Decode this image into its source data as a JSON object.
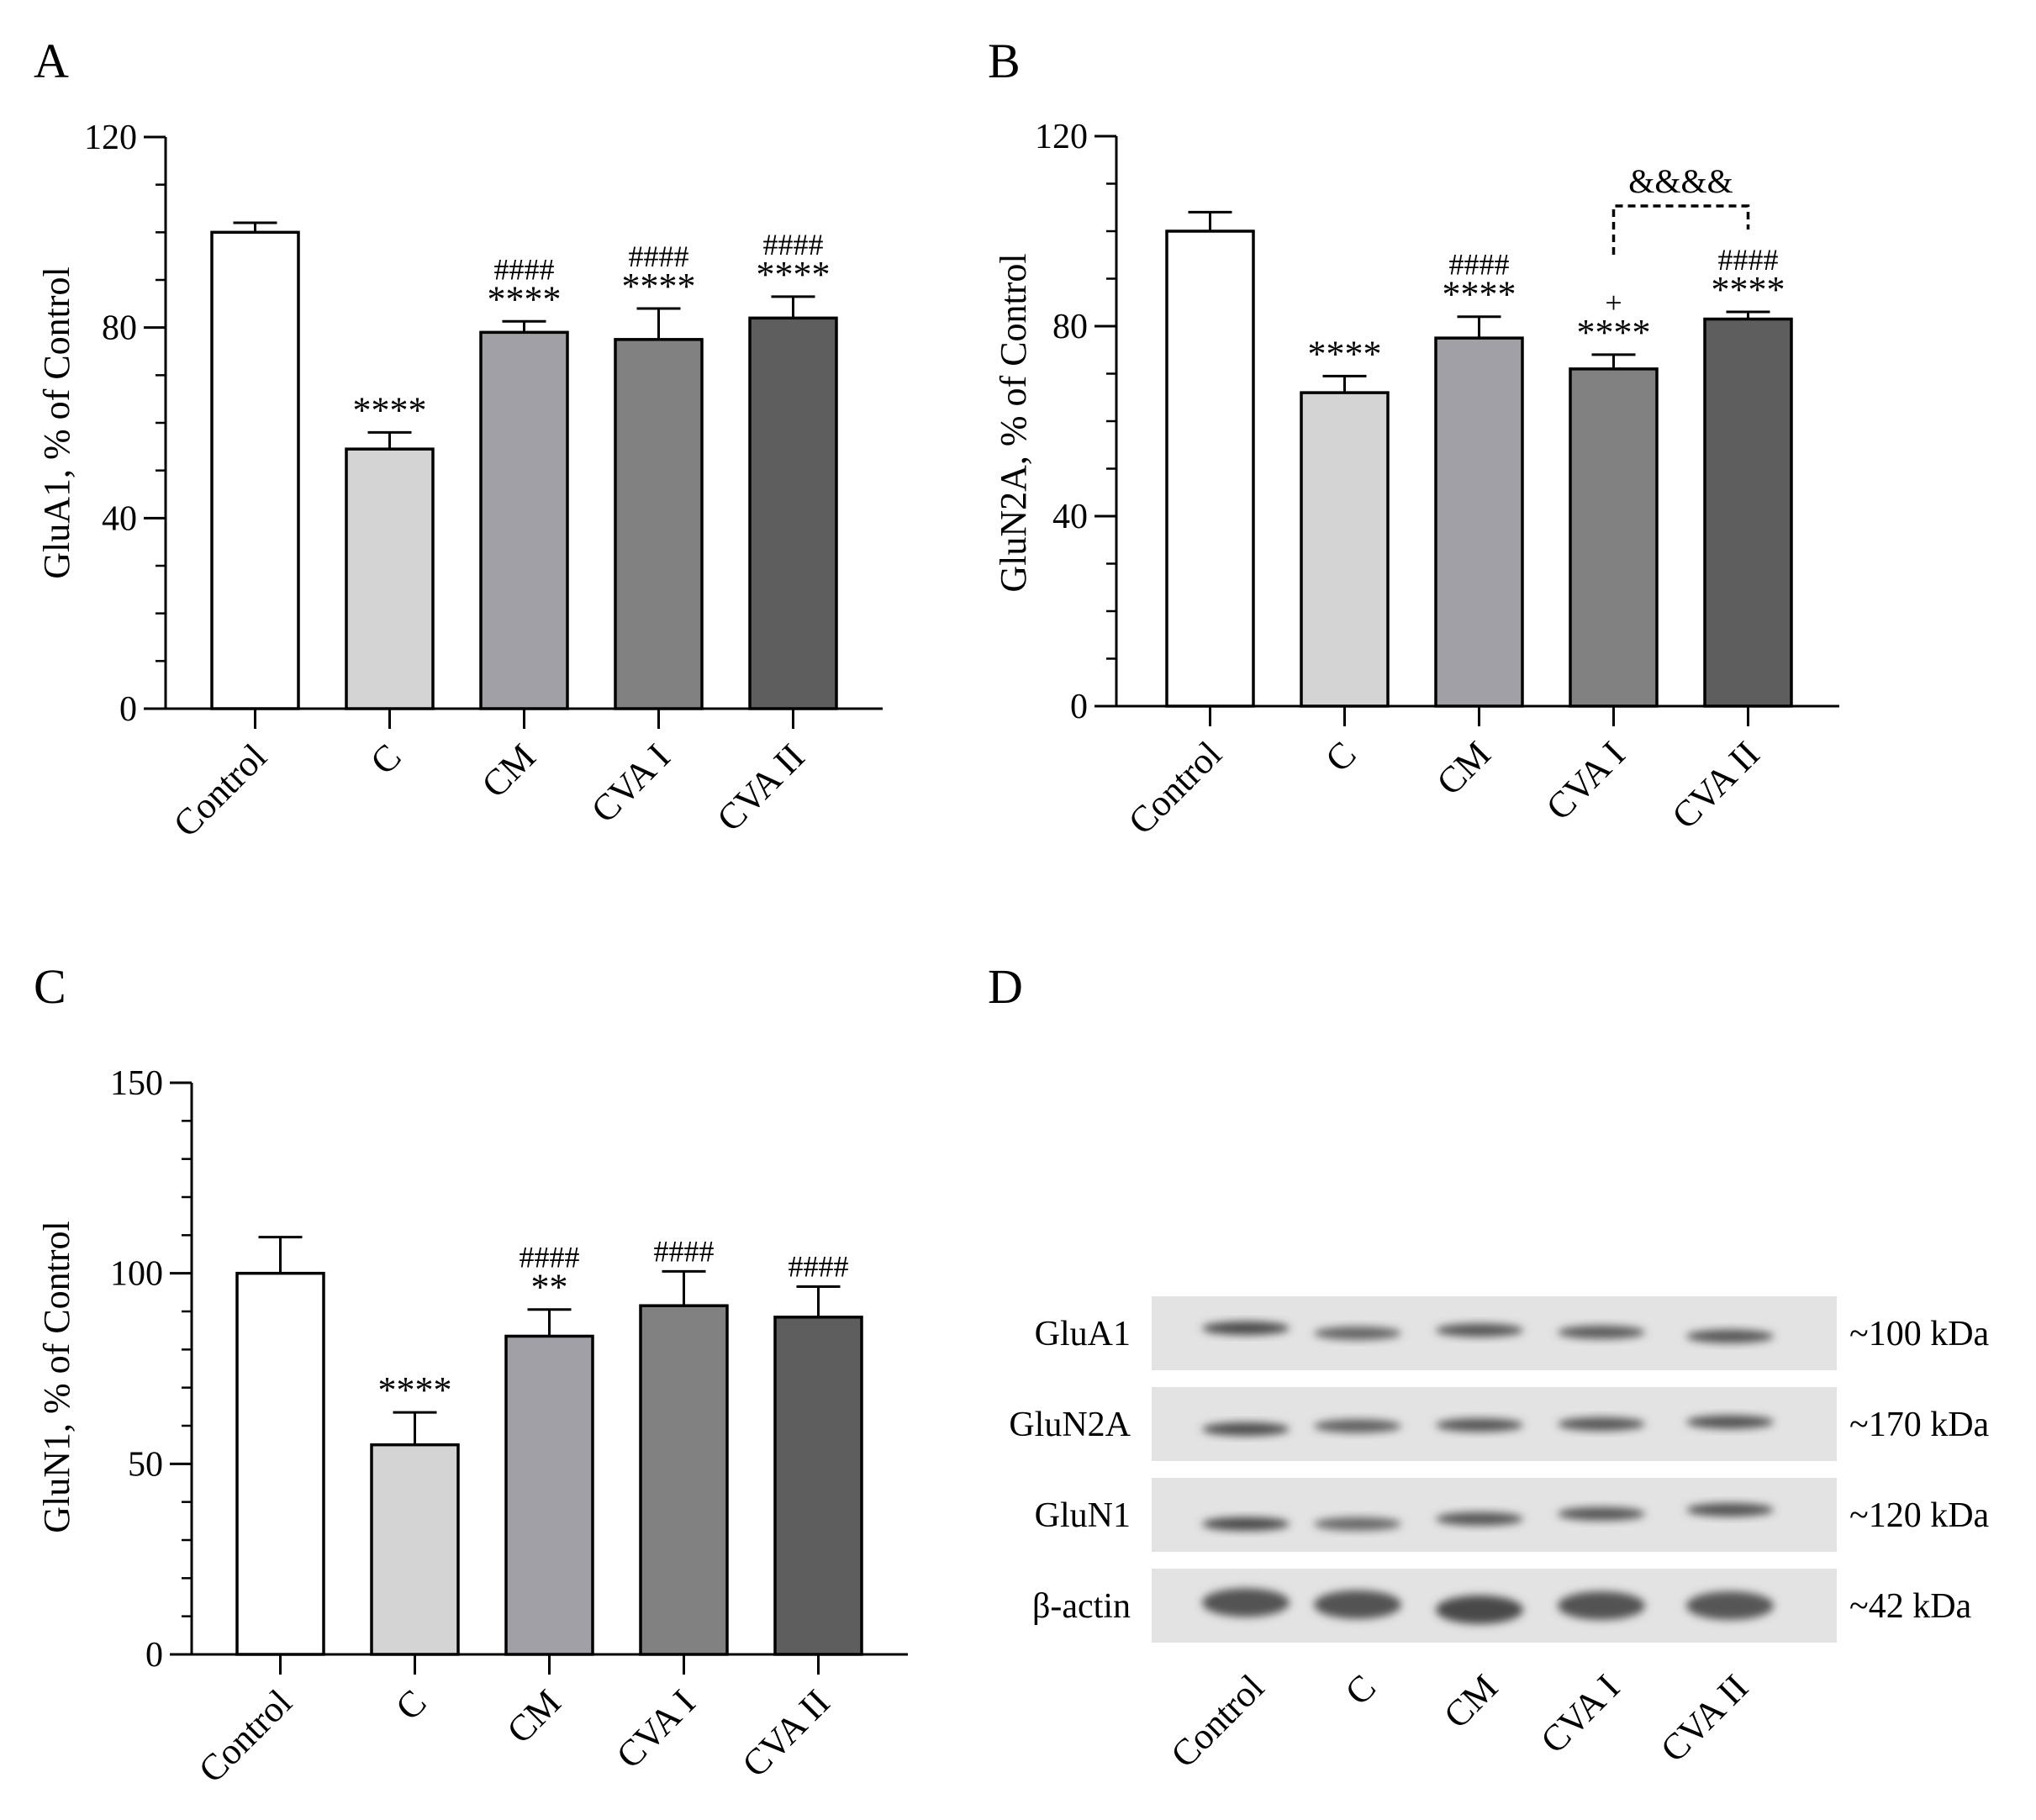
{
  "chart_data": [
    {
      "panel": "A",
      "type": "bar",
      "ylabel": "GluA1, % of Control",
      "ylim": [
        0,
        120
      ],
      "yticks": [
        0,
        40,
        80,
        120
      ],
      "categories": [
        "Control",
        "C",
        "CM",
        "CVA I",
        "CVA II"
      ],
      "values": [
        100,
        54.5,
        79,
        77.5,
        82
      ],
      "errors": [
        2,
        3.5,
        2.3,
        6.5,
        4.5
      ],
      "annotations": [
        [
          "",
          ""
        ],
        [
          "****",
          ""
        ],
        [
          "****",
          "####"
        ],
        [
          "****",
          "####"
        ],
        [
          "****",
          "####"
        ]
      ],
      "colors": [
        "#ffffff",
        "#d4d4d4",
        "#a0a0a6",
        "#818181",
        "#5e5e5e"
      ]
    },
    {
      "panel": "B",
      "type": "bar",
      "ylabel": "GluN2A, % of Control",
      "ylim": [
        0,
        120
      ],
      "yticks": [
        0,
        40,
        80,
        120
      ],
      "categories": [
        "Control",
        "C",
        "CM",
        "CVA I",
        "CVA II"
      ],
      "values": [
        100,
        66,
        77.5,
        71,
        81.5
      ],
      "errors": [
        4,
        3.5,
        4.5,
        3,
        1.5
      ],
      "annotations": [
        [
          "",
          ""
        ],
        [
          "****",
          ""
        ],
        [
          "****",
          "####"
        ],
        [
          "****",
          "+"
        ],
        [
          "****",
          "####"
        ]
      ],
      "bracket": {
        "from": 3,
        "to": 4,
        "label": "&&&&"
      },
      "colors": [
        "#ffffff",
        "#d4d4d4",
        "#a0a0a6",
        "#818181",
        "#5e5e5e"
      ]
    },
    {
      "panel": "C",
      "type": "bar",
      "ylabel": "GluN1, % of Control",
      "ylim": [
        0,
        150
      ],
      "yticks": [
        0,
        50,
        100,
        150
      ],
      "categories": [
        "Control",
        "C",
        "CM",
        "CVA I",
        "CVA II"
      ],
      "values": [
        100,
        55,
        83.5,
        91.5,
        88.5
      ],
      "errors": [
        9.5,
        8.5,
        7,
        9,
        8
      ],
      "annotations": [
        [
          "",
          ""
        ],
        [
          "****",
          ""
        ],
        [
          "**",
          "####"
        ],
        [
          "",
          "####"
        ],
        [
          "",
          "####"
        ]
      ],
      "colors": [
        "#ffffff",
        "#d4d4d4",
        "#a0a0a6",
        "#818181",
        "#5e5e5e"
      ]
    }
  ],
  "blot": {
    "panel": "D",
    "rows": [
      {
        "name": "GluA1",
        "mw": "~100 kDa"
      },
      {
        "name": "GluN2A",
        "mw": "~170 kDa"
      },
      {
        "name": "GluN1",
        "mw": "~120 kDa"
      },
      {
        "name": "β-actin",
        "mw": "~42 kDa"
      }
    ],
    "lanes": [
      "Control",
      "C",
      "CM",
      "CVA I",
      "CVA II"
    ]
  }
}
